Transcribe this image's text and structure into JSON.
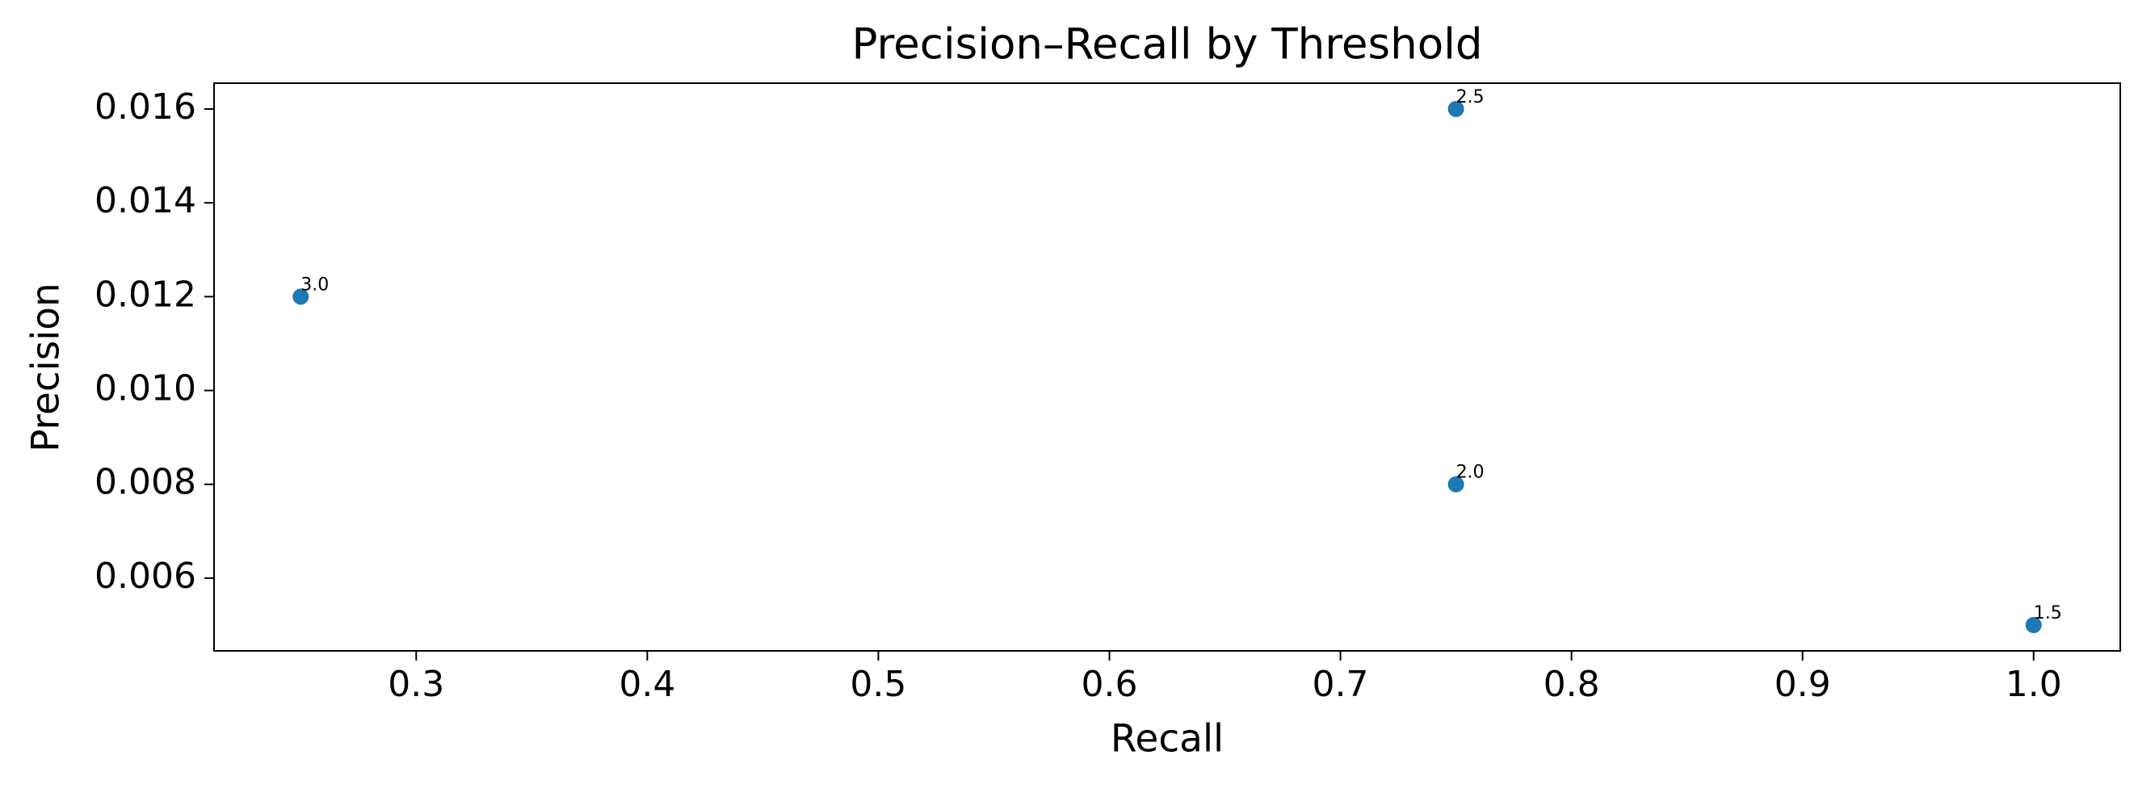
{
  "chart_data": {
    "type": "scatter",
    "title": "Precision–Recall by Threshold",
    "xlabel": "Recall",
    "ylabel": "Precision",
    "series": [
      {
        "color": "#1f77b4",
        "x": [
          1.0,
          0.75,
          0.75,
          0.25
        ],
        "values": [
          0.005,
          0.008,
          0.016,
          0.012
        ],
        "point_labels": [
          "1.5",
          "2.0",
          "2.5",
          "3.0"
        ]
      }
    ],
    "xlim": [
      0.2125,
      1.0375
    ],
    "ylim": [
      0.00445,
      0.01655
    ],
    "xticks": [
      0.3,
      0.4,
      0.5,
      0.6,
      0.7,
      0.8,
      0.9,
      {
        "value": 1.0,
        "label": "1.0"
      }
    ],
    "yticks": [
      0.006,
      0.008,
      {
        "value": 0.01,
        "label": "0.010"
      },
      0.012,
      0.014,
      0.016
    ],
    "grid": false
  }
}
